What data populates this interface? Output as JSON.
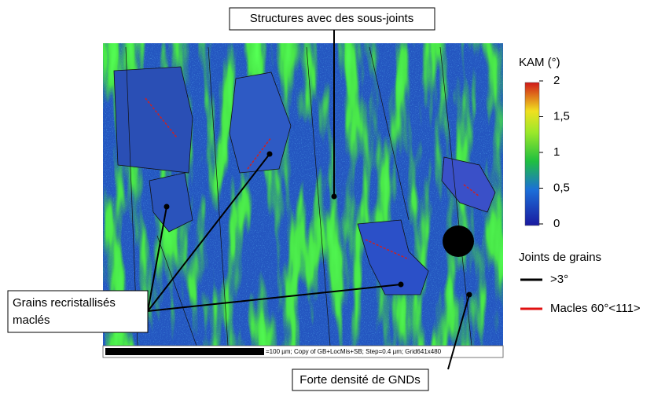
{
  "annotations": {
    "top": "Structures avec des sous-joints",
    "left": [
      "Grains recristallisés",
      "maclés"
    ],
    "bottom": "Forte densité de GNDs"
  },
  "scale_bar": "=100 µm; Copy of GB+LocMis+SB; Step=0.4 µm; Grid641x480",
  "colorbar": {
    "title": "KAM (°)",
    "ticks": [
      "2",
      "1,5",
      "1",
      "0,5",
      "0"
    ]
  },
  "legend": {
    "title": "Joints de grains",
    "entries": [
      ">3°",
      "Macles 60°<111>"
    ]
  }
}
